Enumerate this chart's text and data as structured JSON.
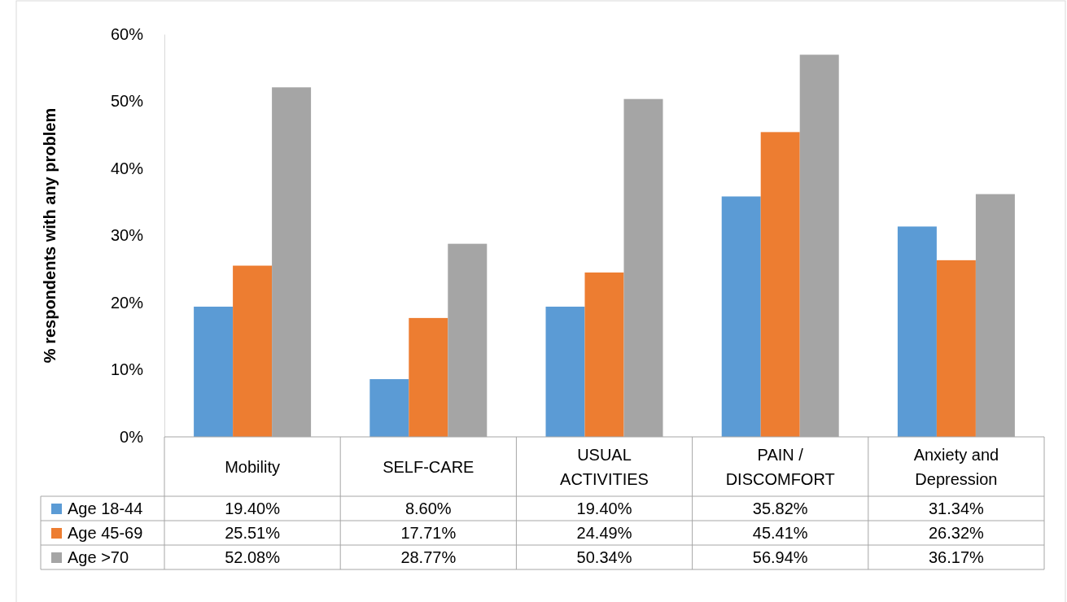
{
  "chart_data": {
    "type": "bar",
    "ylabel": "% respondents with  any problem",
    "categories": [
      "Mobility",
      "SELF-CARE",
      "USUAL ACTIVITIES",
      "PAIN / DISCOMFORT",
      "Anxiety and Depression"
    ],
    "series": [
      {
        "name": "Age 18-44",
        "color": "#5b9bd5",
        "values": [
          19.4,
          8.6,
          19.4,
          35.82,
          31.34
        ],
        "value_labels": [
          "19.40%",
          "8.60%",
          "19.40%",
          "35.82%",
          "31.34%"
        ]
      },
      {
        "name": "Age 45-69",
        "color": "#ed7d31",
        "values": [
          25.51,
          17.71,
          24.49,
          45.41,
          26.32
        ],
        "value_labels": [
          "25.51%",
          "17.71%",
          "24.49%",
          "45.41%",
          "26.32%"
        ]
      },
      {
        "name": "Age >70",
        "color": "#a5a5a5",
        "values": [
          52.08,
          28.77,
          50.34,
          56.94,
          36.17
        ],
        "value_labels": [
          "52.08%",
          "28.77%",
          "50.34%",
          "56.94%",
          "36.17%"
        ]
      }
    ],
    "ylim": [
      0,
      60
    ],
    "yticks": [
      {
        "value": 0,
        "label": "0%"
      },
      {
        "value": 10,
        "label": "10%"
      },
      {
        "value": 20,
        "label": "20%"
      },
      {
        "value": 30,
        "label": "30%"
      },
      {
        "value": 40,
        "label": "40%"
      },
      {
        "value": 50,
        "label": "50%"
      },
      {
        "value": 60,
        "label": "60%"
      }
    ],
    "legend": "bottom left",
    "grid": false
  }
}
